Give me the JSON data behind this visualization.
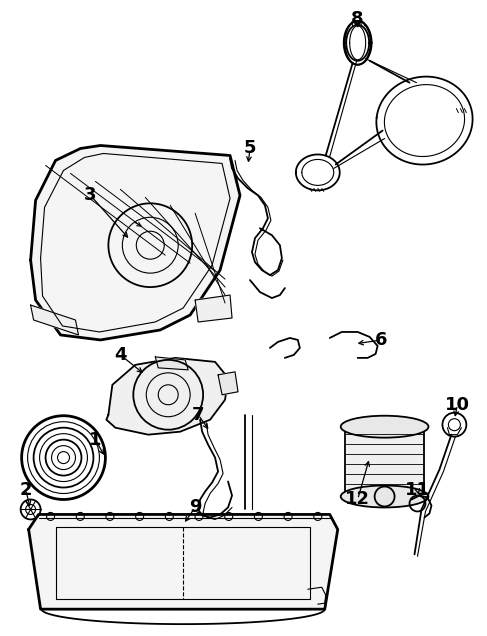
{
  "bg_color": "#ffffff",
  "line_color": "#000000",
  "fig_width": 4.87,
  "fig_height": 6.36,
  "dpi": 100
}
